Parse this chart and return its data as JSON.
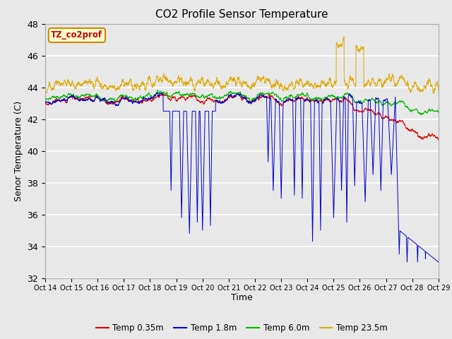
{
  "title": "CO2 Profile Sensor Temperature",
  "ylabel": "Senor Temperature (C)",
  "xlabel": "Time",
  "annotation_text": "TZ_co2prof",
  "annotation_color": "#cc0000",
  "annotation_bg": "#ffffcc",
  "annotation_border": "#cc8800",
  "ylim": [
    32,
    48
  ],
  "yticks": [
    32,
    34,
    36,
    38,
    40,
    42,
    44,
    46,
    48
  ],
  "xtick_labels": [
    "Oct 14",
    "Oct 15",
    "Oct 16",
    "Oct 17",
    "Oct 18",
    "Oct 19",
    "Oct 20",
    "Oct 21",
    "Oct 22",
    "Oct 23",
    "Oct 24",
    "Oct 25",
    "Oct 26",
    "Oct 27",
    "Oct 28",
    "Oct 29"
  ],
  "legend_entries": [
    "Temp 0.35m",
    "Temp 1.8m",
    "Temp 6.0m",
    "Temp 23.5m"
  ],
  "legend_colors": [
    "#dd0000",
    "#0000cc",
    "#00bb00",
    "#ddaa00"
  ],
  "fig_bg_color": "#e8e8e8",
  "plot_bg_color": "#e8e8e8",
  "grid_color": "#ffffff",
  "n_points": 3000,
  "seed": 42
}
